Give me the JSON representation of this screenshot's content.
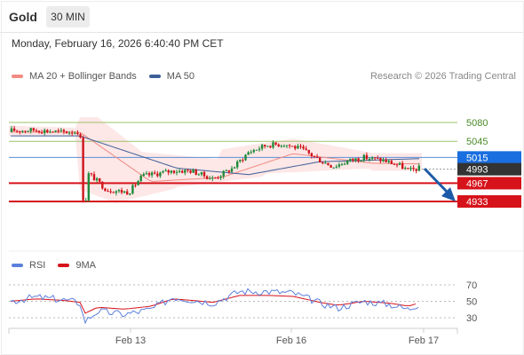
{
  "header": {
    "title": "Gold",
    "timeframe": "30 MIN",
    "timestamp": "Monday, February 16, 2026 6:40:40 PM CET"
  },
  "legend": {
    "items": [
      {
        "label": "MA 20 + Bollinger Bands",
        "color": "#f28b82"
      },
      {
        "label": "MA 50",
        "color": "#3e5f97"
      }
    ],
    "credit": "Research © 2026 Trading Central"
  },
  "chart_data": [
    {
      "type": "candlestick",
      "price_levels": [
        {
          "value": 5080,
          "label": "5080",
          "style": "resistance"
        },
        {
          "value": 5045,
          "label": "5045",
          "style": "resistance"
        },
        {
          "value": 5015,
          "label": "5015",
          "style": "pivot"
        },
        {
          "value": 4993,
          "label": "4993",
          "style": "last"
        },
        {
          "value": 4967,
          "label": "4967",
          "style": "support"
        },
        {
          "value": 4933,
          "label": "4933",
          "style": "support"
        }
      ],
      "colors": {
        "up": "#1f8a3a",
        "down": "#d0141b",
        "band_fill": "#fde3e3",
        "ma20": "#f28b82",
        "ma50": "#3e5f97",
        "resistance": "#9bc26a",
        "pivot": "#5b8fd6",
        "support": "#d6121a",
        "last_bg": "#333333",
        "arrow": "#1d5ba8"
      },
      "x_ticks": [
        "Feb 13",
        "Feb 16",
        "Feb 17"
      ],
      "forecast_arrow": "down"
    },
    {
      "type": "line",
      "legend": [
        {
          "label": "RSI",
          "color": "#5b7fdb"
        },
        {
          "label": "9MA",
          "color": "#d6121a"
        }
      ],
      "y_ticks": [
        70,
        50,
        30
      ],
      "ylim": [
        20,
        80
      ]
    }
  ]
}
